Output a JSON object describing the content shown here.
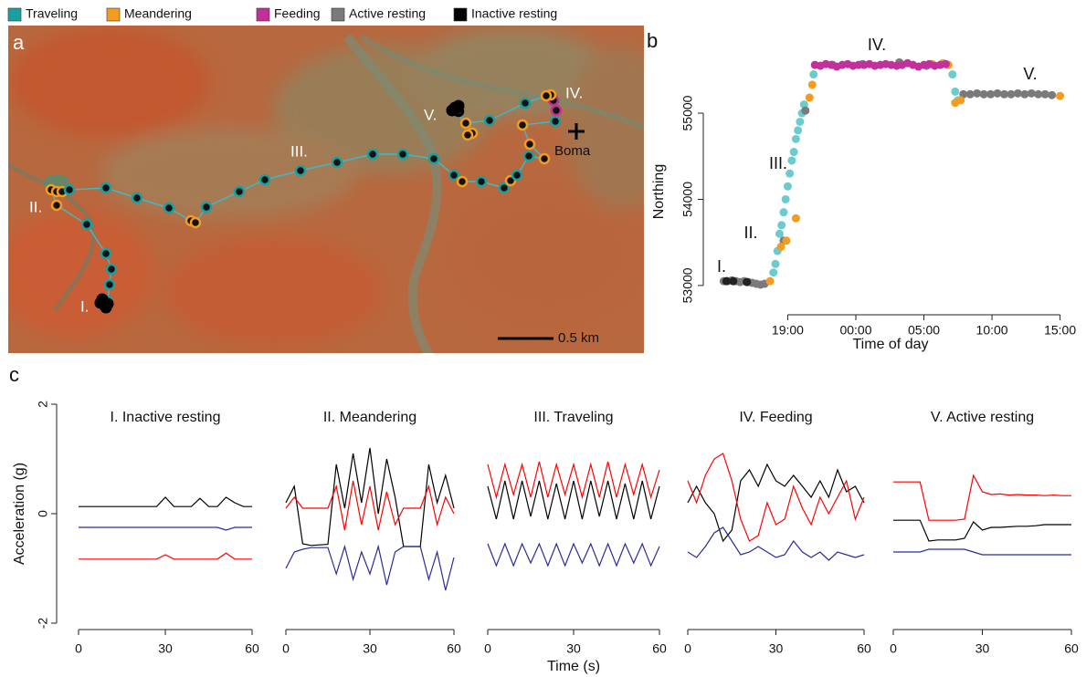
{
  "legend": [
    {
      "name": "Traveling",
      "color": "#1a9e9e"
    },
    {
      "name": "Meandering",
      "color": "#f39c1f"
    },
    {
      "name": "Feeding",
      "color": "#c1309b"
    },
    {
      "name": "Active resting",
      "color": "#7a7a7a"
    },
    {
      "name": "Inactive resting",
      "color": "#000000"
    }
  ],
  "panel_labels": [
    "a",
    "b",
    "c"
  ],
  "map": {
    "markers": [
      "I.",
      "II.",
      "III.",
      "IV.",
      "V."
    ],
    "boma": "Boma",
    "scale": "0.5 km"
  },
  "chart_data": [
    {
      "type": "scatter",
      "xlabel": "Time of day",
      "ylabel": "Northing",
      "annotations": [
        "I.",
        "II.",
        "III.",
        "IV.",
        "V."
      ],
      "xlim": [
        12.8,
        40.3
      ],
      "xticks": [
        {
          "value": 19,
          "label": "19:00"
        },
        {
          "value": 24,
          "label": "00:00"
        },
        {
          "value": 29,
          "label": "05:00"
        },
        {
          "value": 34,
          "label": "10:00"
        },
        {
          "value": 39,
          "label": "15:00"
        }
      ],
      "ylim": [
        52660,
        55890
      ],
      "yticks": [
        53000,
        54000,
        55000
      ],
      "series": [
        {
          "color": "#6ccbce",
          "x": [
            17.95,
            18.1,
            18.25,
            18.4,
            18.55,
            18.7,
            18.85,
            19.0,
            19.15,
            19.3,
            19.45,
            19.6,
            19.75,
            19.9,
            20.05,
            20.2,
            20.9,
            31.1,
            31.3,
            31.5
          ],
          "values": [
            53150,
            53250,
            53400,
            53600,
            53700,
            53850,
            54000,
            54150,
            54300,
            54450,
            54550,
            54700,
            54800,
            54900,
            55000,
            55100,
            55450,
            55450,
            55250,
            55150
          ]
        },
        {
          "color": "#7a7a7a",
          "x": [
            14.3,
            14.6,
            14.9,
            15.2,
            15.5,
            15.8,
            16.1,
            16.4,
            16.7,
            17.0,
            17.3,
            18.7,
            20.3,
            22.3,
            24.5,
            27.2,
            29.2,
            31.9,
            32.4,
            32.9,
            33.4,
            33.9,
            34.4,
            34.9,
            35.4,
            35.9,
            36.4,
            36.9,
            37.4,
            37.9,
            38.4
          ],
          "values": [
            53050,
            53050,
            53060,
            53050,
            53040,
            53050,
            53040,
            53030,
            53020,
            53010,
            53020,
            53520,
            55030,
            55560,
            55570,
            55590,
            55550,
            55220,
            55220,
            55230,
            55220,
            55220,
            55230,
            55220,
            55220,
            55230,
            55220,
            55230,
            55220,
            55220,
            55210
          ]
        },
        {
          "color": "#222222",
          "x": [
            14.5,
            15.0,
            16.0
          ],
          "values": [
            53050,
            53050,
            53040
          ]
        },
        {
          "color": "#f39c1f",
          "x": [
            17.7,
            18.5,
            18.9,
            19.6,
            20.6,
            20.8,
            29.6,
            30.4,
            30.8,
            31.3,
            31.7,
            39.0
          ],
          "values": [
            53050,
            53450,
            53520,
            53780,
            55180,
            55330,
            55570,
            55580,
            55560,
            55120,
            55150,
            55200
          ]
        },
        {
          "color": "#c1309b",
          "x": [
            21.0,
            21.4,
            21.8,
            22.2,
            22.6,
            23.0,
            23.4,
            23.8,
            24.2,
            24.6,
            25.0,
            25.4,
            25.8,
            26.2,
            26.6,
            27.0,
            27.4,
            27.8,
            28.2,
            28.6,
            29.0,
            29.4,
            29.8,
            30.2,
            30.6
          ],
          "values": [
            55560,
            55550,
            55570,
            55560,
            55540,
            55560,
            55570,
            55550,
            55560,
            55560,
            55570,
            55550,
            55560,
            55570,
            55560,
            55550,
            55560,
            55580,
            55560,
            55540,
            55560,
            55570,
            55550,
            55560,
            55570
          ]
        }
      ]
    },
    {
      "type": "line",
      "title": "I. Inactive resting",
      "ylabel": "Acceleration (g)",
      "xlim": [
        0,
        60
      ],
      "xticks": [
        0,
        30,
        60
      ],
      "ylim": [
        -2.2,
        2.2
      ],
      "yticks": [
        -2,
        0,
        2
      ],
      "x": [
        0,
        3,
        6,
        9,
        12,
        15,
        18,
        21,
        24,
        27,
        30,
        33,
        36,
        39,
        42,
        45,
        48,
        51,
        54,
        57,
        60
      ],
      "series": [
        {
          "color": "#000000",
          "values": [
            0.13,
            0.13,
            0.13,
            0.13,
            0.13,
            0.13,
            0.13,
            0.13,
            0.13,
            0.13,
            0.3,
            0.13,
            0.13,
            0.13,
            0.28,
            0.13,
            0.13,
            0.3,
            0.2,
            0.13,
            0.13
          ]
        },
        {
          "color": "#2b2b9a",
          "values": [
            -0.25,
            -0.25,
            -0.25,
            -0.25,
            -0.25,
            -0.25,
            -0.25,
            -0.25,
            -0.25,
            -0.25,
            -0.25,
            -0.25,
            -0.25,
            -0.25,
            -0.25,
            -0.25,
            -0.25,
            -0.3,
            -0.25,
            -0.25,
            -0.25
          ]
        },
        {
          "color": "#ff0000",
          "values": [
            -0.83,
            -0.83,
            -0.83,
            -0.83,
            -0.83,
            -0.83,
            -0.83,
            -0.83,
            -0.83,
            -0.83,
            -0.75,
            -0.83,
            -0.83,
            -0.83,
            -0.83,
            -0.83,
            -0.83,
            -0.72,
            -0.83,
            -0.83,
            -0.83
          ]
        }
      ]
    },
    {
      "type": "line",
      "title": "II. Meandering",
      "xlim": [
        0,
        60
      ],
      "xticks": [
        0,
        30,
        60
      ],
      "ylim": [
        -2.2,
        2.2
      ],
      "x": [
        0,
        3,
        6,
        9,
        12,
        15,
        18,
        21,
        24,
        27,
        30,
        33,
        36,
        39,
        42,
        45,
        48,
        51,
        54,
        57,
        60
      ],
      "series": [
        {
          "color": "#000000",
          "values": [
            0.2,
            0.5,
            -0.55,
            -0.58,
            -0.57,
            -0.56,
            0.9,
            0.1,
            1.1,
            0.2,
            1.2,
            0.0,
            1.0,
            0.3,
            -0.6,
            -0.6,
            -0.6,
            0.9,
            0.2,
            0.7,
            0.1
          ]
        },
        {
          "color": "#ff0000",
          "values": [
            0.1,
            0.3,
            0.1,
            0.1,
            0.1,
            0.1,
            0.5,
            -0.3,
            0.6,
            -0.2,
            0.5,
            -0.3,
            0.4,
            -0.2,
            0.1,
            0.1,
            0.1,
            0.5,
            -0.2,
            0.3,
            0.0
          ]
        },
        {
          "color": "#2b2b9a",
          "values": [
            -1.0,
            -0.7,
            -0.65,
            -0.62,
            -0.62,
            -0.62,
            -1.1,
            -0.6,
            -1.2,
            -0.7,
            -1.1,
            -0.6,
            -1.3,
            -0.7,
            -0.6,
            -0.6,
            -0.6,
            -1.2,
            -0.7,
            -1.4,
            -0.8
          ]
        }
      ]
    },
    {
      "type": "line",
      "title": "III. Traveling",
      "xlabel": "Time (s)",
      "xlim": [
        0,
        60
      ],
      "xticks": [
        0,
        30,
        60
      ],
      "ylim": [
        -2.2,
        2.2
      ],
      "x": [
        0,
        3,
        6,
        9,
        12,
        15,
        18,
        21,
        24,
        27,
        30,
        33,
        36,
        39,
        42,
        45,
        48,
        51,
        54,
        57,
        60
      ],
      "series": [
        {
          "color": "#000000",
          "values": [
            0.5,
            -0.1,
            0.6,
            -0.1,
            0.6,
            -0.05,
            0.6,
            -0.1,
            0.55,
            -0.1,
            0.6,
            -0.1,
            0.6,
            -0.05,
            0.6,
            -0.1,
            0.55,
            -0.1,
            0.6,
            -0.1,
            0.5
          ]
        },
        {
          "color": "#ff0000",
          "values": [
            0.9,
            0.3,
            0.9,
            0.35,
            0.9,
            0.3,
            0.95,
            0.3,
            0.9,
            0.35,
            0.9,
            0.3,
            0.9,
            0.3,
            0.95,
            0.3,
            0.9,
            0.35,
            0.9,
            0.3,
            0.8
          ]
        },
        {
          "color": "#2b2b9a",
          "values": [
            -0.55,
            -0.95,
            -0.55,
            -0.95,
            -0.55,
            -0.9,
            -0.55,
            -0.95,
            -0.55,
            -0.95,
            -0.55,
            -0.9,
            -0.55,
            -0.95,
            -0.55,
            -0.95,
            -0.55,
            -0.9,
            -0.55,
            -0.95,
            -0.6
          ]
        }
      ]
    },
    {
      "type": "line",
      "title": "IV. Feeding",
      "xlim": [
        0,
        60
      ],
      "xticks": [
        0,
        30,
        60
      ],
      "ylim": [
        -2.2,
        2.2
      ],
      "x": [
        0,
        3,
        6,
        9,
        12,
        15,
        18,
        21,
        24,
        27,
        30,
        33,
        36,
        39,
        42,
        45,
        48,
        51,
        54,
        57,
        60
      ],
      "series": [
        {
          "color": "#000000",
          "values": [
            0.2,
            0.5,
            0.2,
            0.0,
            -0.5,
            -0.3,
            0.6,
            0.8,
            0.5,
            0.9,
            0.6,
            0.5,
            0.7,
            0.5,
            0.3,
            0.6,
            0.3,
            0.8,
            0.4,
            0.5,
            0.2
          ]
        },
        {
          "color": "#ff0000",
          "values": [
            0.6,
            0.2,
            0.7,
            1.0,
            1.1,
            0.6,
            -0.1,
            -0.5,
            -0.4,
            0.2,
            -0.2,
            -0.1,
            0.5,
            0.1,
            -0.2,
            0.3,
            0.0,
            0.3,
            0.6,
            -0.1,
            0.3
          ]
        },
        {
          "color": "#2b2b9a",
          "values": [
            -0.7,
            -0.8,
            -0.6,
            -0.35,
            -0.25,
            -0.5,
            -0.75,
            -0.7,
            -0.6,
            -0.7,
            -0.8,
            -0.75,
            -0.5,
            -0.7,
            -0.8,
            -0.7,
            -0.85,
            -0.7,
            -0.75,
            -0.8,
            -0.75
          ]
        }
      ]
    },
    {
      "type": "line",
      "title": "V. Active resting",
      "xlim": [
        0,
        60
      ],
      "xticks": [
        0,
        30,
        60
      ],
      "ylim": [
        -2.2,
        2.2
      ],
      "x": [
        0,
        3,
        6,
        9,
        12,
        15,
        18,
        21,
        24,
        27,
        30,
        33,
        36,
        39,
        42,
        45,
        48,
        51,
        54,
        57,
        60
      ],
      "series": [
        {
          "color": "#ff0000",
          "values": [
            0.58,
            0.58,
            0.58,
            0.58,
            -0.12,
            -0.12,
            -0.12,
            -0.12,
            -0.1,
            0.7,
            0.4,
            0.35,
            0.36,
            0.34,
            0.35,
            0.34,
            0.34,
            0.33,
            0.34,
            0.33,
            0.33
          ]
        },
        {
          "color": "#000000",
          "values": [
            -0.12,
            -0.12,
            -0.12,
            -0.12,
            -0.5,
            -0.48,
            -0.48,
            -0.48,
            -0.45,
            -0.15,
            -0.3,
            -0.25,
            -0.25,
            -0.24,
            -0.23,
            -0.23,
            -0.22,
            -0.2,
            -0.2,
            -0.2,
            -0.2
          ]
        },
        {
          "color": "#2b2b9a",
          "values": [
            -0.7,
            -0.7,
            -0.7,
            -0.7,
            -0.65,
            -0.65,
            -0.65,
            -0.65,
            -0.65,
            -0.7,
            -0.75,
            -0.75,
            -0.75,
            -0.75,
            -0.75,
            -0.75,
            -0.75,
            -0.75,
            -0.75,
            -0.75,
            -0.75
          ]
        }
      ]
    }
  ]
}
